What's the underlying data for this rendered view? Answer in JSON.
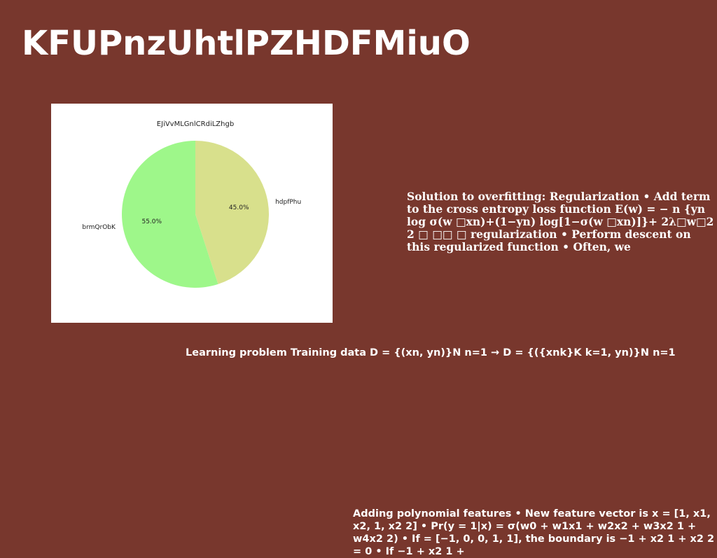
{
  "slide": {
    "title": "KFUPnzUhtlPZHDFMiuO",
    "text_block": "Solution to overfitting: Regularization • Add term to the cross entropy loss function E(w) = − n {yn log σ(w □xn)+(1−yn) log[1−σ(w □xn)]}+ 2λ□w□2 2 □ □□ □ regularization • Perform descent on this regularized function • Often, we",
    "learning_problem": "Learning problem Training data D = {(xn, yn)}N n=1 → D = {({xnk}K k=1, yn)}N n=1",
    "polynomial": "Adding polynomial features • New feature vector is x = [1, x1, x2, 1, x2 2] • Pr(y = 1|x) = σ(w0 + w1x1 + w2x2 + w3x2 1 + w4x2 2) • If = [−1, 0, 0, 1, 1], the boundary is −1 + x2 1 + x2 2 = 0 • If −1 + x2 1 +"
  },
  "colors": {
    "background": "#78372d",
    "slice_hdpfPhu": "#d8e08c",
    "slice_brmQrObK": "#9ef78a"
  },
  "chart_data": {
    "type": "pie",
    "title": "EJiVvMLGnlCRdiLZhgb",
    "categories": [
      "hdpfPhu",
      "brmQrObK"
    ],
    "values": [
      45.0,
      55.0
    ],
    "labels": [
      "45.0%",
      "55.0%"
    ],
    "start_angle": 90,
    "direction": "clockwise"
  }
}
